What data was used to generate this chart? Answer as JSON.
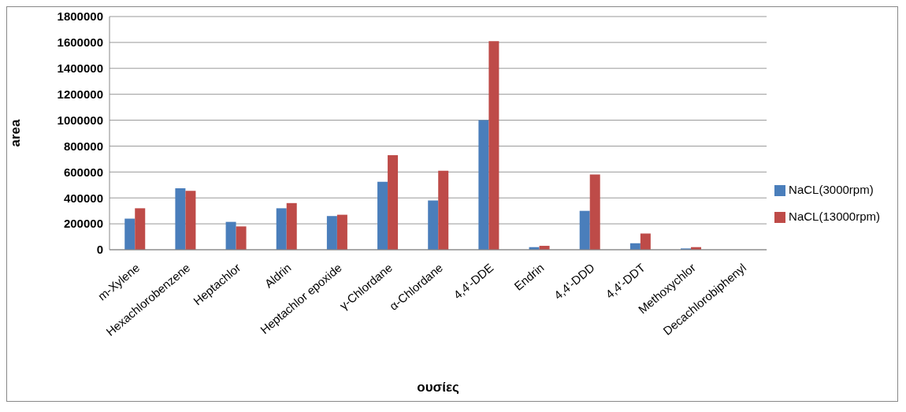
{
  "chart_data": {
    "type": "bar",
    "xlabel": "ουσίες",
    "ylabel": "area",
    "categories": [
      "m-Xylene",
      "Hexachlorobenzene",
      "Heptachlor",
      "Aldrin",
      "Heptachlor epoxide",
      "γ-Chlordane",
      "α-Chlordane",
      "4,4'-DDE",
      "Endrin",
      "4,4'-DDD",
      "4,4'-DDT",
      "Methoxychlor",
      "Decachlorobiphenyl"
    ],
    "series": [
      {
        "name": "NaCL(3000rpm)",
        "color": "#4a7ebb",
        "values": [
          240000,
          475000,
          215000,
          320000,
          260000,
          525000,
          380000,
          1000000,
          20000,
          300000,
          50000,
          10000,
          0
        ]
      },
      {
        "name": "NaCL(13000rpm)",
        "color": "#be4b48",
        "values": [
          320000,
          455000,
          180000,
          360000,
          270000,
          730000,
          610000,
          1610000,
          30000,
          580000,
          125000,
          20000,
          0
        ]
      }
    ],
    "ylim": [
      0,
      1800000
    ],
    "yticks": [
      0,
      200000,
      400000,
      600000,
      800000,
      1000000,
      1200000,
      1400000,
      1600000,
      1800000
    ],
    "grid": "y",
    "legend": "right"
  }
}
